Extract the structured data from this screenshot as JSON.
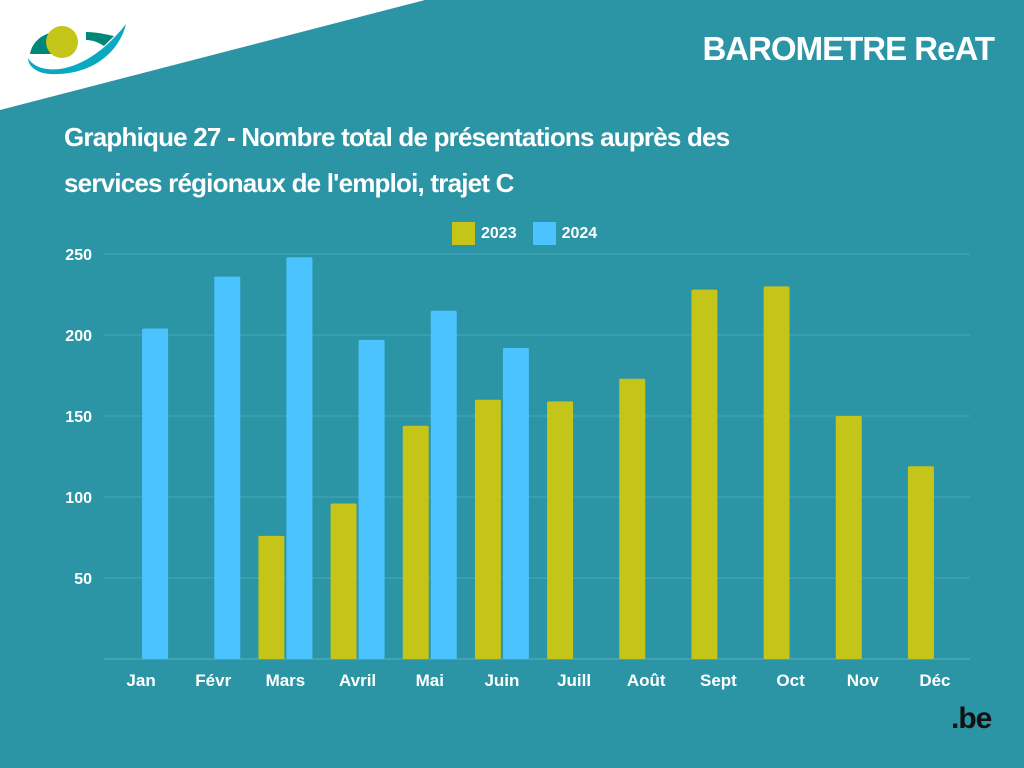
{
  "header": {
    "brand": "BAROMETRE ReAT",
    "title_line1": "Graphique 27 - Nombre total de présentations auprès des",
    "title_line2": "services régionaux de l'emploi, trajet C",
    "logo_icon": "eye-logo-icon",
    "footer_logo": ".be"
  },
  "colors": {
    "background": "#2b95a6",
    "series_2023": "#c5c418",
    "series_2024": "#4bc3ff",
    "grid": "#4aa8b6"
  },
  "chart_data": {
    "type": "bar",
    "title": "Graphique 27 - Nombre total de présentations auprès des services régionaux de l'emploi, trajet C",
    "xlabel": "",
    "ylabel": "",
    "ylim": [
      0,
      250
    ],
    "yticks": [
      50,
      100,
      150,
      200,
      250
    ],
    "grid": true,
    "legend_position": "top-center",
    "categories": [
      "Jan",
      "Févr",
      "Mars",
      "Avril",
      "Mai",
      "Juin",
      "Juill",
      "Août",
      "Sept",
      "Oct",
      "Nov",
      "Déc"
    ],
    "series": [
      {
        "name": "2023",
        "color": "#c5c418",
        "values": [
          null,
          null,
          76,
          96,
          144,
          160,
          159,
          173,
          228,
          230,
          150,
          119
        ]
      },
      {
        "name": "2024",
        "color": "#4bc3ff",
        "values": [
          204,
          236,
          248,
          197,
          215,
          192,
          null,
          null,
          null,
          null,
          null,
          null
        ]
      }
    ]
  }
}
